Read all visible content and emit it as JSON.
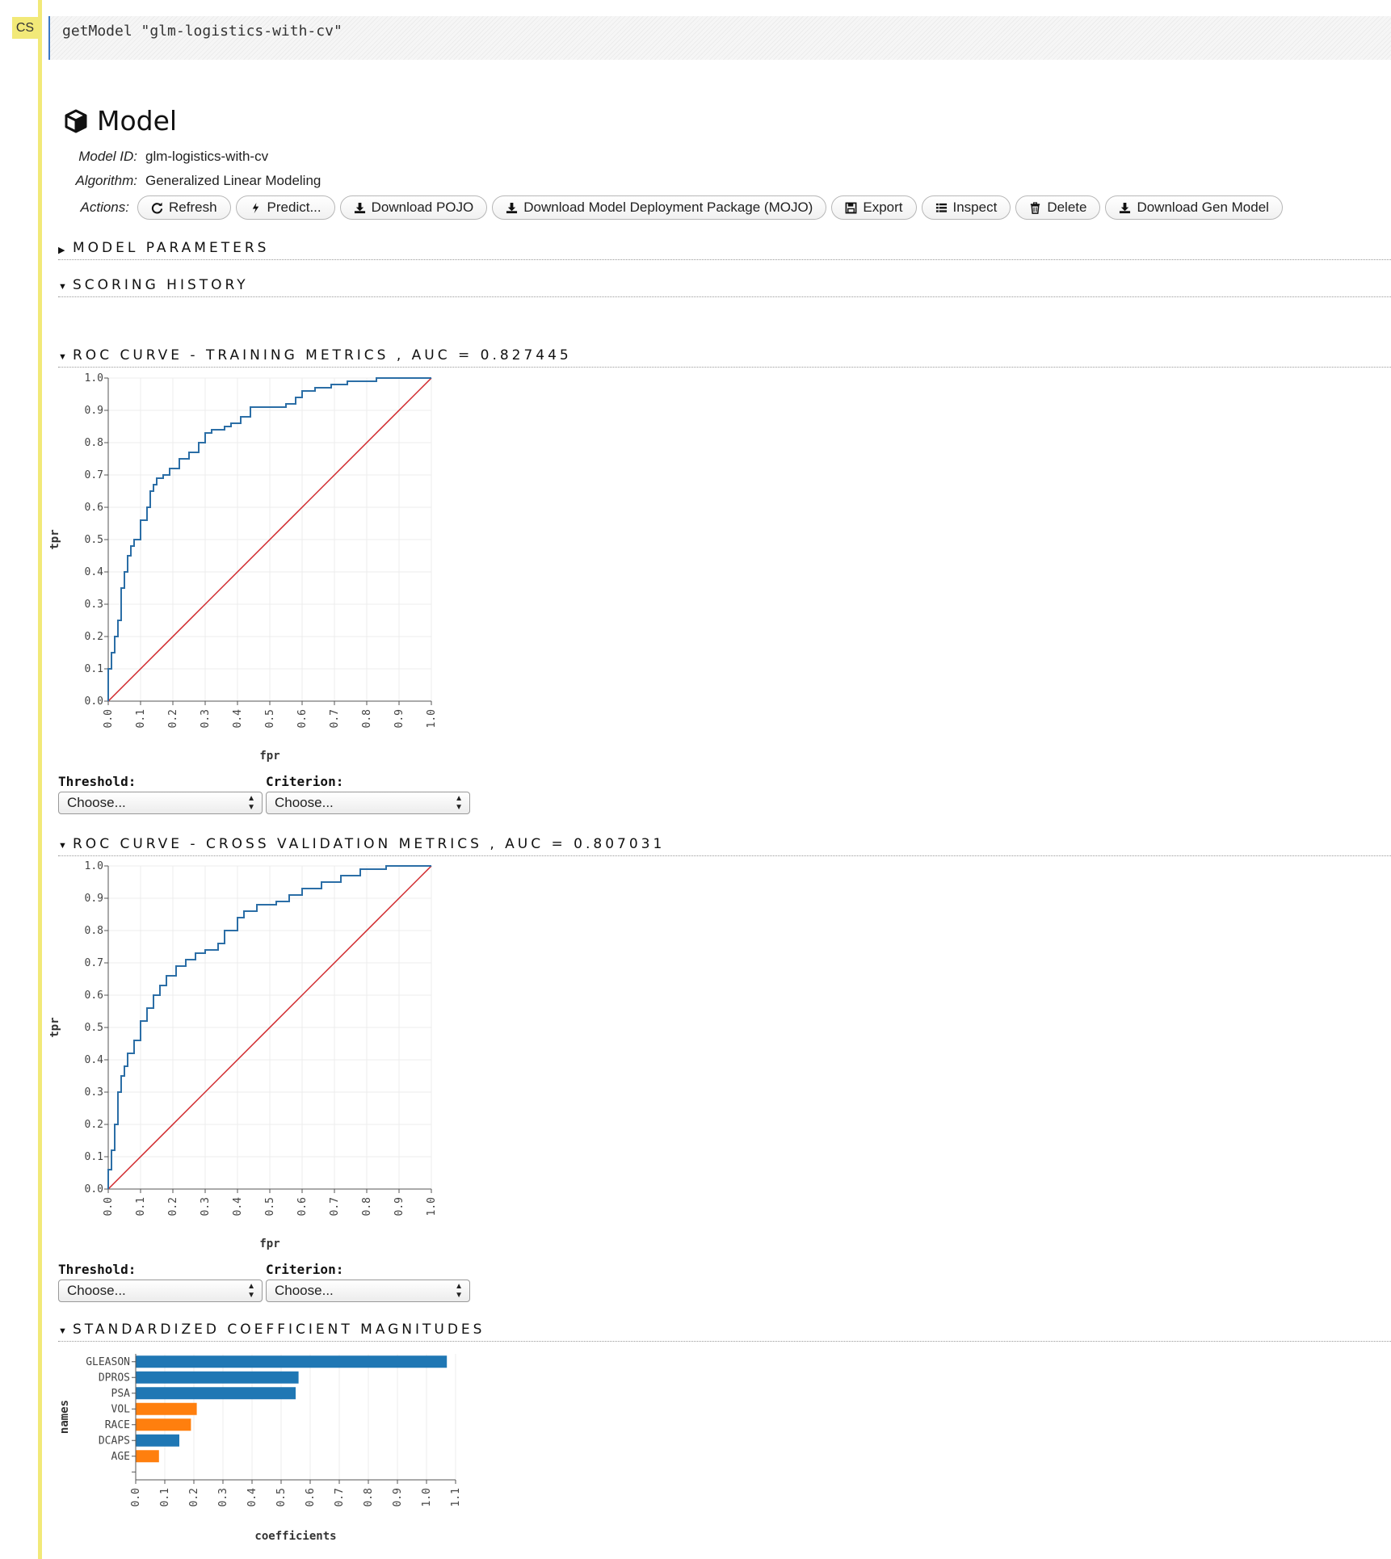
{
  "cell": {
    "badge": "CS",
    "code": "getModel \"glm-logistics-with-cv\""
  },
  "model": {
    "title": "Model",
    "id_label": "Model ID:",
    "id_value": "glm-logistics-with-cv",
    "algo_label": "Algorithm:",
    "algo_value": "Generalized Linear Modeling",
    "actions_label": "Actions:",
    "actions": {
      "refresh": "Refresh",
      "predict": "Predict...",
      "pojo": "Download POJO",
      "mojo": "Download Model Deployment Package (MOJO)",
      "export": "Export",
      "inspect": "Inspect",
      "delete": "Delete",
      "gen_model": "Download Gen Model"
    }
  },
  "sections": {
    "params": "MODEL PARAMETERS",
    "history": "SCORING HISTORY",
    "roc_train": "ROC CURVE - TRAINING METRICS , AUC = 0.827445",
    "roc_cv": "ROC CURVE - CROSS VALIDATION METRICS , AUC = 0.807031",
    "coef": "STANDARDIZED COEFFICIENT MAGNITUDES"
  },
  "selectors": {
    "threshold_label": "Threshold:",
    "criterion_label": "Criterion:",
    "threshold_value": "Choose...",
    "criterion_value": "Choose..."
  },
  "colors": {
    "curve": "#2b6ea6",
    "diagonal": "#d0262a",
    "positive": "#1f77b4",
    "negative": "#ff7f0e"
  },
  "chart_data": [
    {
      "type": "line",
      "title": "ROC CURVE - TRAINING METRICS , AUC = 0.827445",
      "xlabel": "fpr",
      "ylabel": "tpr",
      "xlim": [
        0,
        1
      ],
      "ylim": [
        0,
        1
      ],
      "grid": true,
      "ticks": [
        "0.0",
        "0.1",
        "0.2",
        "0.3",
        "0.4",
        "0.5",
        "0.6",
        "0.7",
        "0.8",
        "0.9",
        "1.0"
      ],
      "series": [
        {
          "x": [
            0,
            0,
            0.01,
            0.01,
            0.02,
            0.02,
            0.03,
            0.03,
            0.04,
            0.04,
            0.05,
            0.05,
            0.06,
            0.06,
            0.07,
            0.07,
            0.08,
            0.08,
            0.1,
            0.1,
            0.12,
            0.12,
            0.13,
            0.13,
            0.14,
            0.14,
            0.15,
            0.15,
            0.17,
            0.17,
            0.19,
            0.19,
            0.22,
            0.22,
            0.25,
            0.25,
            0.28,
            0.28,
            0.3,
            0.3,
            0.32,
            0.32,
            0.36,
            0.36,
            0.38,
            0.38,
            0.41,
            0.41,
            0.44,
            0.44,
            0.55,
            0.55,
            0.58,
            0.58,
            0.6,
            0.6,
            0.64,
            0.64,
            0.69,
            0.69,
            0.74,
            0.74,
            0.83,
            0.83,
            0.92,
            1
          ],
          "y": [
            0,
            0.1,
            0.1,
            0.15,
            0.15,
            0.2,
            0.2,
            0.25,
            0.25,
            0.35,
            0.35,
            0.4,
            0.4,
            0.45,
            0.45,
            0.48,
            0.48,
            0.5,
            0.5,
            0.56,
            0.56,
            0.6,
            0.6,
            0.65,
            0.65,
            0.67,
            0.67,
            0.69,
            0.69,
            0.7,
            0.7,
            0.72,
            0.72,
            0.75,
            0.75,
            0.77,
            0.77,
            0.8,
            0.8,
            0.83,
            0.83,
            0.84,
            0.84,
            0.85,
            0.85,
            0.86,
            0.86,
            0.88,
            0.88,
            0.91,
            0.91,
            0.92,
            0.92,
            0.94,
            0.94,
            0.96,
            0.96,
            0.97,
            0.97,
            0.98,
            0.98,
            0.99,
            0.99,
            1,
            1,
            1
          ]
        }
      ]
    },
    {
      "type": "line",
      "title": "ROC CURVE - CROSS VALIDATION METRICS , AUC = 0.807031",
      "xlabel": "fpr",
      "ylabel": "tpr",
      "xlim": [
        0,
        1
      ],
      "ylim": [
        0,
        1
      ],
      "grid": true,
      "ticks": [
        "0.0",
        "0.1",
        "0.2",
        "0.3",
        "0.4",
        "0.5",
        "0.6",
        "0.7",
        "0.8",
        "0.9",
        "1.0"
      ],
      "series": [
        {
          "x": [
            0,
            0,
            0.01,
            0.01,
            0.02,
            0.02,
            0.03,
            0.03,
            0.04,
            0.04,
            0.05,
            0.05,
            0.06,
            0.06,
            0.08,
            0.08,
            0.1,
            0.1,
            0.12,
            0.12,
            0.14,
            0.14,
            0.16,
            0.16,
            0.18,
            0.18,
            0.21,
            0.21,
            0.24,
            0.24,
            0.27,
            0.27,
            0.3,
            0.3,
            0.34,
            0.34,
            0.36,
            0.36,
            0.4,
            0.4,
            0.42,
            0.42,
            0.46,
            0.46,
            0.52,
            0.52,
            0.56,
            0.56,
            0.6,
            0.6,
            0.66,
            0.66,
            0.72,
            0.72,
            0.78,
            0.78,
            0.86,
            0.86,
            0.92,
            1
          ],
          "y": [
            0,
            0.06,
            0.06,
            0.12,
            0.12,
            0.2,
            0.2,
            0.3,
            0.3,
            0.35,
            0.35,
            0.38,
            0.38,
            0.42,
            0.42,
            0.46,
            0.46,
            0.52,
            0.52,
            0.56,
            0.56,
            0.6,
            0.6,
            0.63,
            0.63,
            0.66,
            0.66,
            0.69,
            0.69,
            0.71,
            0.71,
            0.73,
            0.73,
            0.74,
            0.74,
            0.76,
            0.76,
            0.8,
            0.8,
            0.84,
            0.84,
            0.86,
            0.86,
            0.88,
            0.88,
            0.89,
            0.89,
            0.91,
            0.91,
            0.93,
            0.93,
            0.95,
            0.95,
            0.97,
            0.97,
            0.99,
            0.99,
            1,
            1,
            1
          ]
        }
      ]
    },
    {
      "type": "bar",
      "orientation": "horizontal",
      "title": "STANDARDIZED COEFFICIENT MAGNITUDES",
      "xlabel": "coefficients",
      "ylabel": "names",
      "xlim": [
        0,
        1.1
      ],
      "grid": true,
      "ticks": [
        "0.0",
        "0.1",
        "0.2",
        "0.3",
        "0.4",
        "0.5",
        "0.6",
        "0.7",
        "0.8",
        "0.9",
        "1.0",
        "1.1"
      ],
      "categories": [
        "GLEASON",
        "DPROS",
        "PSA",
        "VOL",
        "RACE",
        "DCAPS",
        "AGE"
      ],
      "values": [
        1.07,
        0.56,
        0.55,
        0.21,
        0.19,
        0.15,
        0.08
      ],
      "signs": [
        "POS",
        "POS",
        "POS",
        "NEG",
        "NEG",
        "POS",
        "NEG"
      ]
    }
  ]
}
